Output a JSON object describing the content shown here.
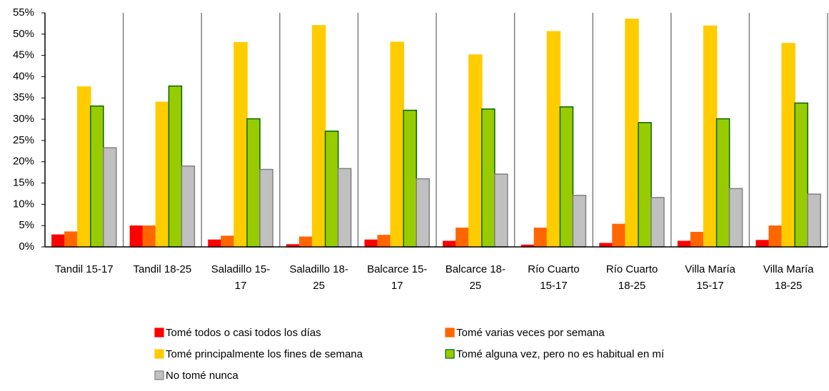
{
  "chart_data": {
    "type": "bar",
    "categories": [
      "Tandil 15-17",
      "Tandil  18-25",
      "Saladillo 15-17",
      "Saladillo 18-25",
      "Balcarce 15-17",
      "Balcarce 18-25",
      "Río Cuarto 15-17",
      "Río Cuarto 18-25",
      "Villa María 15-17",
      "Villa María 18-25"
    ],
    "series": [
      {
        "name": "Tomé todos o casi todos los días",
        "color": "#ff0000",
        "border": "#ff0000",
        "values": [
          2.8,
          4.9,
          1.6,
          0.5,
          1.6,
          1.3,
          0.4,
          0.8,
          1.3,
          1.5
        ]
      },
      {
        "name": "Tomé varias veces por semana",
        "color": "#ff6600",
        "border": "#ff6600",
        "values": [
          3.5,
          4.9,
          2.5,
          2.3,
          2.7,
          4.4,
          4.4,
          5.3,
          3.4,
          4.9
        ]
      },
      {
        "name": "Tomé principalmente los fines de semana",
        "color": "#ffcc00",
        "border": "#ffcc00",
        "values": [
          37.6,
          34.0,
          48.0,
          52.0,
          48.1,
          45.1,
          50.6,
          53.5,
          51.9,
          47.8
        ]
      },
      {
        "name": "Tomé alguna vez, pero no es habitual en mí",
        "color": "#99cc00",
        "border": "#006600",
        "values": [
          33.1,
          37.8,
          30.1,
          27.2,
          32.1,
          32.4,
          32.9,
          29.2,
          30.1,
          33.8
        ]
      },
      {
        "name": "No tomé nunca",
        "color": "#c0c0c0",
        "border": "#808080",
        "values": [
          23.3,
          19.0,
          18.2,
          18.4,
          16.0,
          17.1,
          12.1,
          11.6,
          13.7,
          12.4
        ]
      }
    ],
    "ylim": [
      0,
      55
    ],
    "yticks": [
      {
        "value": 0,
        "label": "0%"
      },
      {
        "value": 5,
        "label": "5%"
      },
      {
        "value": 10,
        "label": "10%"
      },
      {
        "value": 15,
        "label": "15%"
      },
      {
        "value": 20,
        "label": "20%"
      },
      {
        "value": 25,
        "label": "25%"
      },
      {
        "value": 30,
        "label": "30%"
      },
      {
        "value": 35,
        "label": "35%"
      },
      {
        "value": 40,
        "label": "40%"
      },
      {
        "value": 45,
        "label": "45%"
      },
      {
        "value": 50,
        "label": "50%"
      },
      {
        "value": 55,
        "label": "55%"
      }
    ],
    "grid": false,
    "legend": "bottom"
  }
}
